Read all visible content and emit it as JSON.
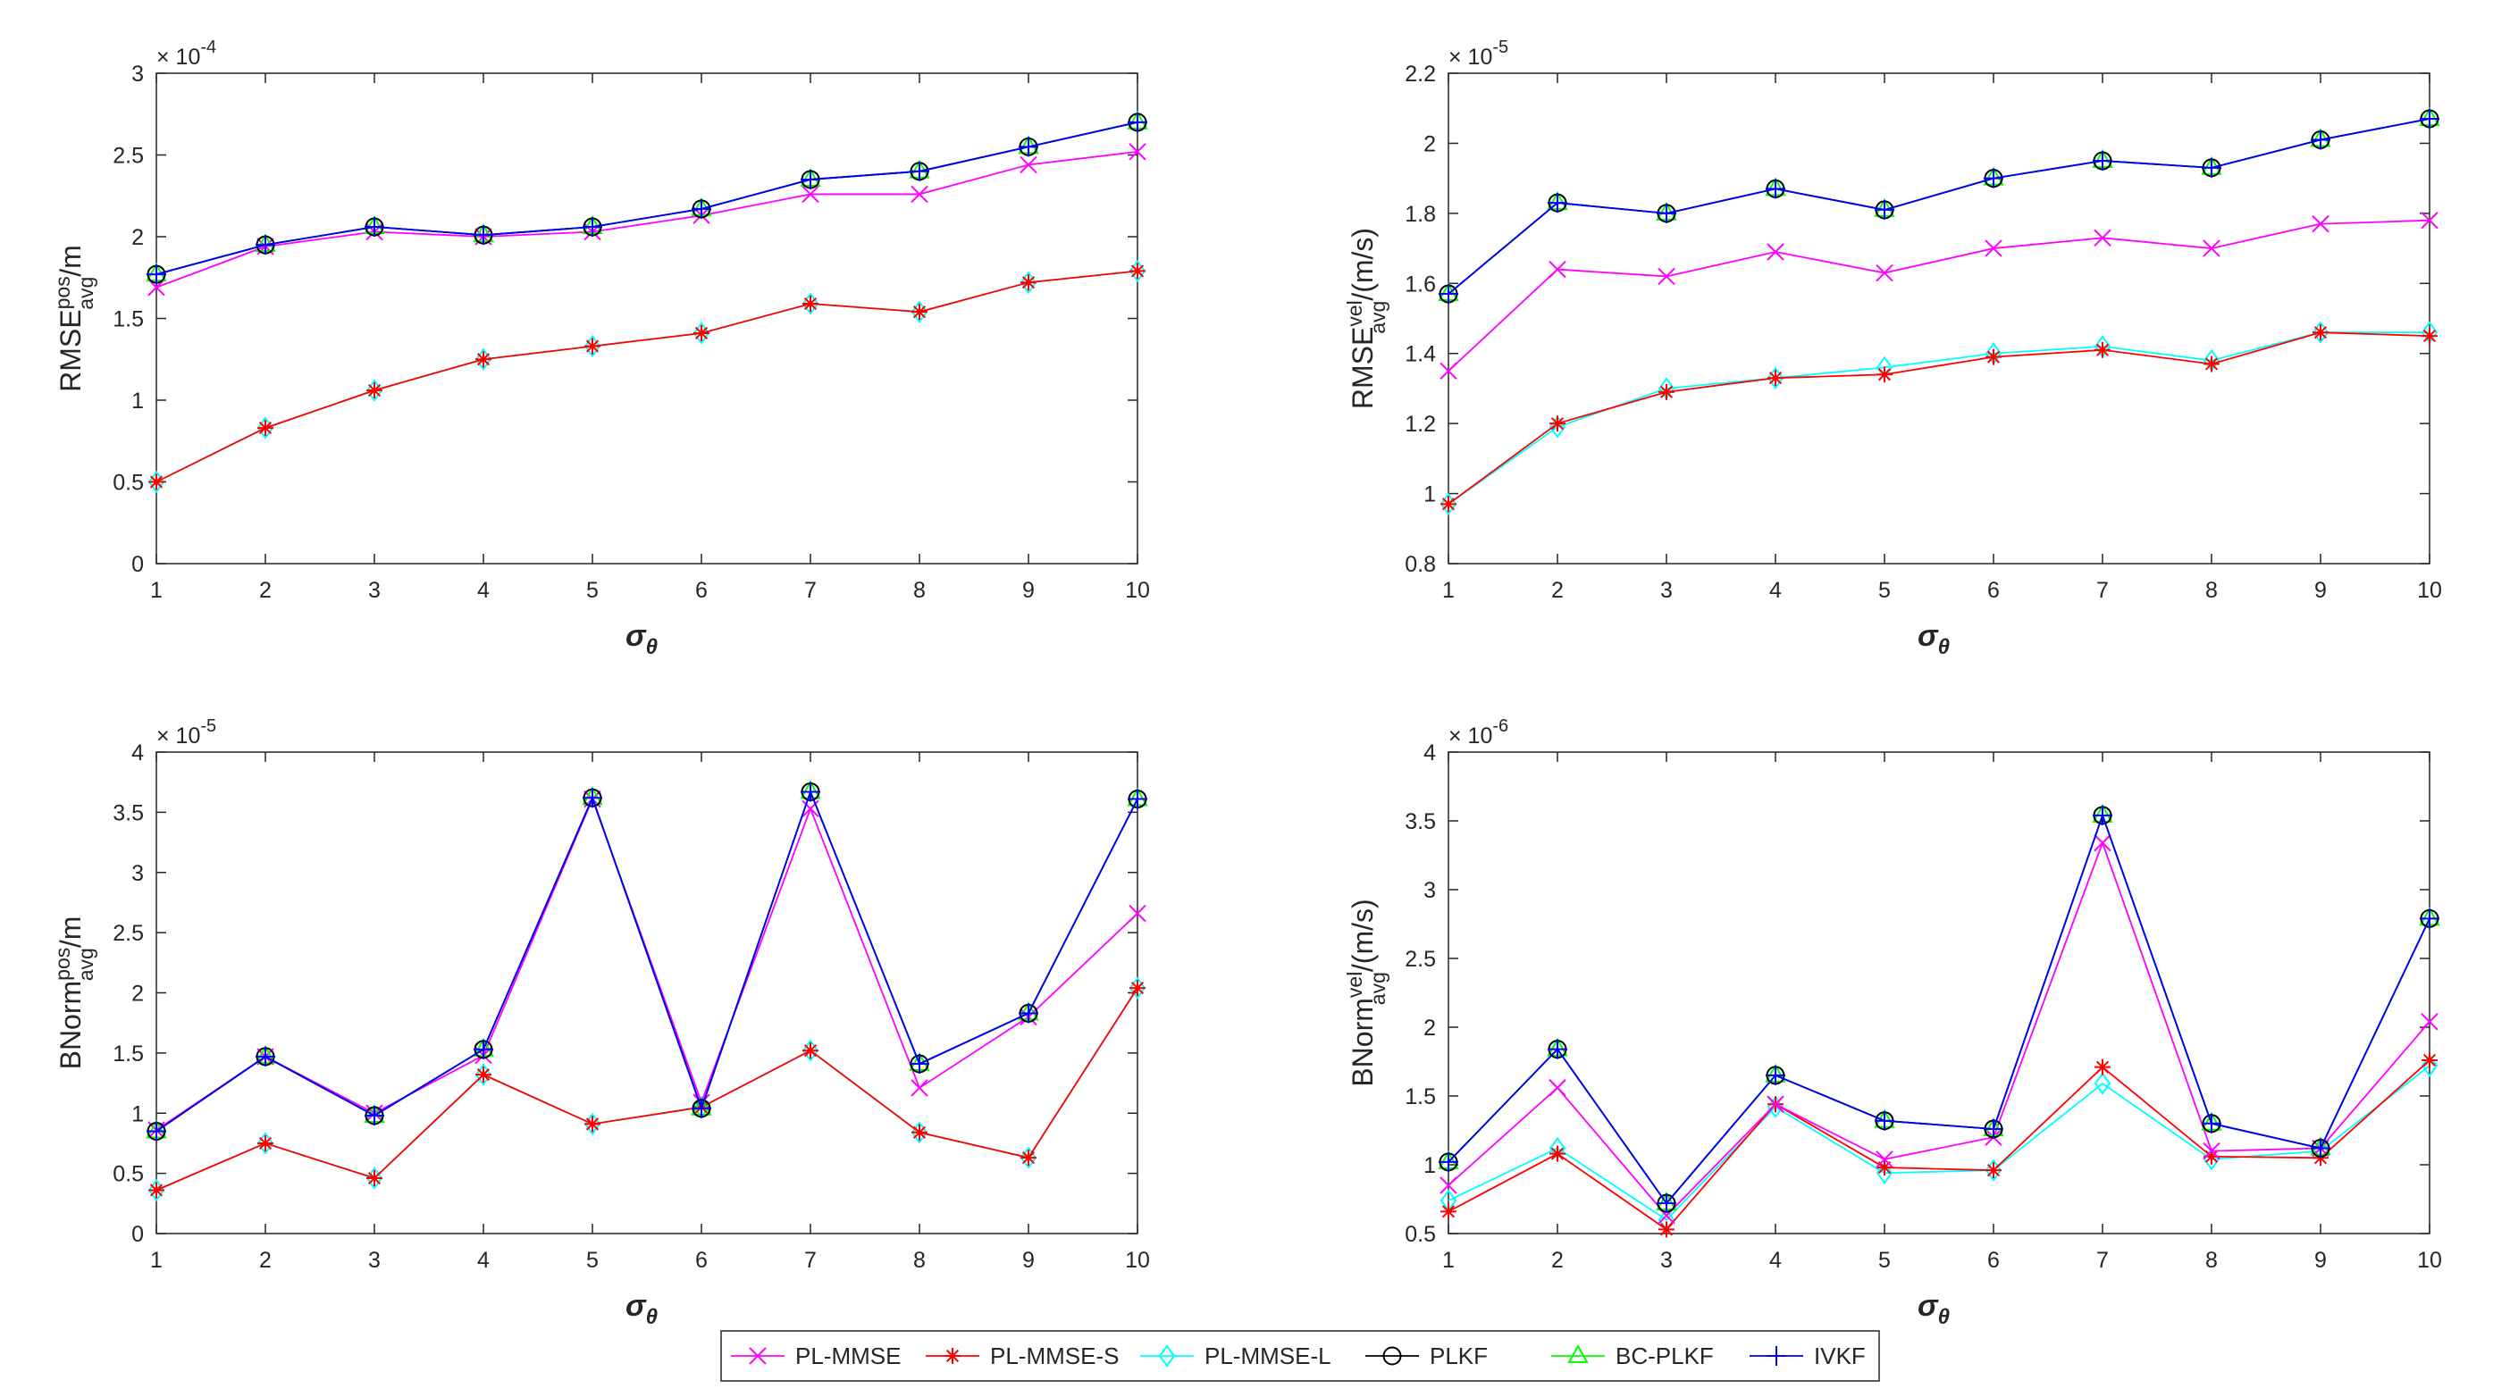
{
  "colors": {
    "PL-MMSE": "#ff00ff",
    "PL-MMSE-S": "#ff0000",
    "PL-MMSE-L": "#00ffff",
    "PLKF": "#000000",
    "BC-PLKF": "#00ff00",
    "IVKF": "#0000ff"
  },
  "legend": {
    "entries": [
      {
        "name": "PL-MMSE",
        "marker": "x"
      },
      {
        "name": "PL-MMSE-S",
        "marker": "asterisk"
      },
      {
        "name": "PL-MMSE-L",
        "marker": "diamond"
      },
      {
        "name": "PLKF",
        "marker": "circle"
      },
      {
        "name": "BC-PLKF",
        "marker": "triangle"
      },
      {
        "name": "IVKF",
        "marker": "plus"
      }
    ]
  },
  "chart_data": [
    {
      "type": "line",
      "id": "rmse-pos",
      "ylabel_main": "RMSE",
      "ylabel_sup": "pos",
      "ylabel_sub": "avg",
      "ylabel_tail": "/m",
      "xlabel_main": "σ",
      "xlabel_sub": "θ",
      "exponent_base": "× 10",
      "exponent_power": "-4",
      "xlim": [
        1,
        10
      ],
      "ylim": [
        0,
        3
      ],
      "xticks": [
        1,
        2,
        3,
        4,
        5,
        6,
        7,
        8,
        9,
        10
      ],
      "yticks": [
        0,
        0.5,
        1,
        1.5,
        2,
        2.5,
        3
      ],
      "ytick_labels": [
        "0",
        "0.5",
        "1",
        "1.5",
        "2",
        "2.5",
        "3"
      ],
      "x": [
        1,
        2,
        3,
        4,
        5,
        6,
        7,
        8,
        9,
        10
      ],
      "series": [
        {
          "name": "PL-MMSE",
          "values": [
            1.69,
            1.94,
            2.03,
            2.0,
            2.03,
            2.13,
            2.26,
            2.26,
            2.44,
            2.52
          ]
        },
        {
          "name": "PL-MMSE-S",
          "values": [
            0.5,
            0.83,
            1.06,
            1.25,
            1.33,
            1.41,
            1.59,
            1.54,
            1.72,
            1.79
          ]
        },
        {
          "name": "PL-MMSE-L",
          "values": [
            0.5,
            0.83,
            1.06,
            1.25,
            1.33,
            1.41,
            1.59,
            1.54,
            1.72,
            1.79
          ]
        },
        {
          "name": "PLKF",
          "values": [
            1.77,
            1.95,
            2.06,
            2.01,
            2.06,
            2.17,
            2.35,
            2.4,
            2.55,
            2.7
          ]
        },
        {
          "name": "BC-PLKF",
          "values": [
            1.77,
            1.95,
            2.06,
            2.01,
            2.06,
            2.17,
            2.35,
            2.4,
            2.55,
            2.7
          ]
        },
        {
          "name": "IVKF",
          "values": [
            1.77,
            1.95,
            2.06,
            2.01,
            2.06,
            2.17,
            2.35,
            2.4,
            2.55,
            2.7
          ]
        }
      ]
    },
    {
      "type": "line",
      "id": "rmse-vel",
      "ylabel_main": "RMSE",
      "ylabel_sup": "vel",
      "ylabel_sub": "avg",
      "ylabel_tail": "/(m/s)",
      "xlabel_main": "σ",
      "xlabel_sub": "θ",
      "exponent_base": "× 10",
      "exponent_power": "-5",
      "xlim": [
        1,
        10
      ],
      "ylim": [
        0.8,
        2.2
      ],
      "xticks": [
        1,
        2,
        3,
        4,
        5,
        6,
        7,
        8,
        9,
        10
      ],
      "yticks": [
        0.8,
        1.0,
        1.2,
        1.4,
        1.6,
        1.8,
        2.0,
        2.2
      ],
      "ytick_labels": [
        "0.8",
        "1",
        "1.2",
        "1.4",
        "1.6",
        "1.8",
        "2",
        "2.2"
      ],
      "x": [
        1,
        2,
        3,
        4,
        5,
        6,
        7,
        8,
        9,
        10
      ],
      "series": [
        {
          "name": "PL-MMSE",
          "values": [
            1.35,
            1.64,
            1.62,
            1.69,
            1.63,
            1.7,
            1.73,
            1.7,
            1.77,
            1.78
          ]
        },
        {
          "name": "PL-MMSE-S",
          "values": [
            0.97,
            1.2,
            1.29,
            1.33,
            1.34,
            1.39,
            1.41,
            1.37,
            1.46,
            1.45
          ]
        },
        {
          "name": "PL-MMSE-L",
          "values": [
            0.97,
            1.19,
            1.3,
            1.33,
            1.36,
            1.4,
            1.42,
            1.38,
            1.46,
            1.46
          ]
        },
        {
          "name": "PLKF",
          "values": [
            1.57,
            1.83,
            1.8,
            1.87,
            1.81,
            1.9,
            1.95,
            1.93,
            2.01,
            2.07
          ]
        },
        {
          "name": "BC-PLKF",
          "values": [
            1.57,
            1.83,
            1.8,
            1.87,
            1.81,
            1.9,
            1.95,
            1.93,
            2.01,
            2.07
          ]
        },
        {
          "name": "IVKF",
          "values": [
            1.57,
            1.83,
            1.8,
            1.87,
            1.81,
            1.9,
            1.95,
            1.93,
            2.01,
            2.07
          ]
        }
      ]
    },
    {
      "type": "line",
      "id": "bnorm-pos",
      "ylabel_main": "BNorm",
      "ylabel_sup": "pos",
      "ylabel_sub": "avg",
      "ylabel_tail": "/m",
      "xlabel_main": "σ",
      "xlabel_sub": "θ",
      "exponent_base": "× 10",
      "exponent_power": "-5",
      "xlim": [
        1,
        10
      ],
      "ylim": [
        0,
        4
      ],
      "xticks": [
        1,
        2,
        3,
        4,
        5,
        6,
        7,
        8,
        9,
        10
      ],
      "yticks": [
        0,
        0.5,
        1,
        1.5,
        2,
        2.5,
        3,
        3.5,
        4
      ],
      "ytick_labels": [
        "0",
        "0.5",
        "1",
        "1.5",
        "2",
        "2.5",
        "3",
        "3.5",
        "4"
      ],
      "x": [
        1,
        2,
        3,
        4,
        5,
        6,
        7,
        8,
        9,
        10
      ],
      "series": [
        {
          "name": "PL-MMSE",
          "values": [
            0.86,
            1.47,
            1.0,
            1.48,
            3.61,
            1.09,
            3.53,
            1.21,
            1.8,
            2.66
          ]
        },
        {
          "name": "PL-MMSE-S",
          "values": [
            0.36,
            0.75,
            0.46,
            1.32,
            0.91,
            1.05,
            1.52,
            0.84,
            0.63,
            2.04
          ]
        },
        {
          "name": "PL-MMSE-L",
          "values": [
            0.36,
            0.75,
            0.46,
            1.32,
            0.91,
            1.05,
            1.52,
            0.84,
            0.63,
            2.04
          ]
        },
        {
          "name": "PLKF",
          "values": [
            0.85,
            1.47,
            0.98,
            1.53,
            3.62,
            1.04,
            3.67,
            1.41,
            1.83,
            3.61
          ]
        },
        {
          "name": "BC-PLKF",
          "values": [
            0.85,
            1.47,
            0.98,
            1.53,
            3.62,
            1.04,
            3.67,
            1.41,
            1.83,
            3.61
          ]
        },
        {
          "name": "IVKF",
          "values": [
            0.85,
            1.47,
            0.98,
            1.53,
            3.62,
            1.04,
            3.67,
            1.41,
            1.83,
            3.61
          ]
        }
      ]
    },
    {
      "type": "line",
      "id": "bnorm-vel",
      "ylabel_main": "BNorm",
      "ylabel_sup": "vel",
      "ylabel_sub": "avg",
      "ylabel_tail": "/(m/s)",
      "xlabel_main": "σ",
      "xlabel_sub": "θ",
      "exponent_base": "× 10",
      "exponent_power": "-6",
      "xlim": [
        1,
        10
      ],
      "ylim": [
        0.5,
        4
      ],
      "xticks": [
        1,
        2,
        3,
        4,
        5,
        6,
        7,
        8,
        9,
        10
      ],
      "yticks": [
        0.5,
        1,
        1.5,
        2,
        2.5,
        3,
        3.5,
        4
      ],
      "ytick_labels": [
        "0.5",
        "1",
        "1.5",
        "2",
        "2.5",
        "3",
        "3.5",
        "4"
      ],
      "x": [
        1,
        2,
        3,
        4,
        5,
        6,
        7,
        8,
        9,
        10
      ],
      "series": [
        {
          "name": "PL-MMSE",
          "values": [
            0.85,
            1.56,
            0.63,
            1.44,
            1.04,
            1.2,
            3.34,
            1.1,
            1.12,
            2.04
          ]
        },
        {
          "name": "PL-MMSE-S",
          "values": [
            0.66,
            1.08,
            0.53,
            1.44,
            0.98,
            0.96,
            1.71,
            1.06,
            1.05,
            1.76
          ]
        },
        {
          "name": "PL-MMSE-L",
          "values": [
            0.74,
            1.12,
            0.6,
            1.42,
            0.94,
            0.96,
            1.59,
            1.04,
            1.1,
            1.72
          ]
        },
        {
          "name": "PLKF",
          "values": [
            1.02,
            1.84,
            0.72,
            1.65,
            1.32,
            1.26,
            3.54,
            1.3,
            1.12,
            2.79
          ]
        },
        {
          "name": "BC-PLKF",
          "values": [
            1.02,
            1.84,
            0.72,
            1.65,
            1.32,
            1.26,
            3.54,
            1.3,
            1.12,
            2.79
          ]
        },
        {
          "name": "IVKF",
          "values": [
            1.02,
            1.84,
            0.72,
            1.65,
            1.32,
            1.26,
            3.54,
            1.3,
            1.12,
            2.79
          ]
        }
      ]
    }
  ]
}
